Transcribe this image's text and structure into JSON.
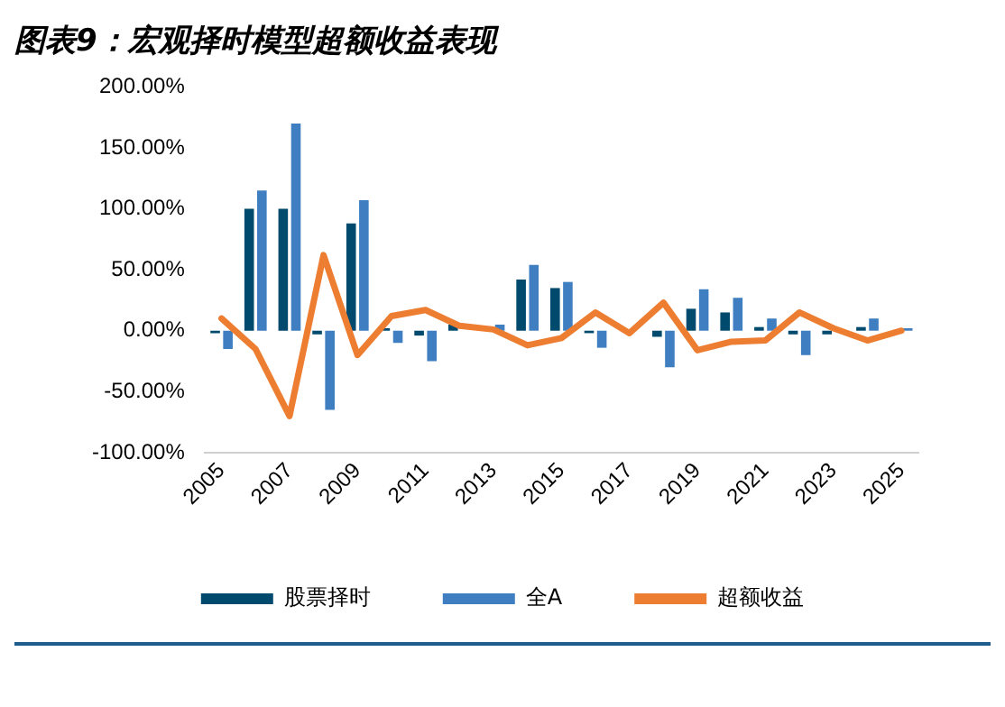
{
  "chart_data": {
    "type": "bar",
    "title": "图表9：宏观择时模型超额收益表现",
    "categories": [
      "2005",
      null,
      "2007",
      null,
      "2009",
      null,
      "2011",
      null,
      "2013",
      null,
      "2015",
      null,
      "2017",
      null,
      "2019",
      null,
      "2021",
      null,
      "2023",
      null,
      "2025"
    ],
    "series": [
      {
        "name": "股票择时",
        "color": "#004a6e",
        "values": [
          -2,
          100,
          100,
          -3,
          88,
          2,
          -4,
          5,
          null,
          42,
          35,
          -2,
          null,
          -5,
          18,
          15,
          3,
          -3,
          -3,
          3,
          null
        ]
      },
      {
        "name": "全A",
        "color": "#3f7fc1",
        "values": [
          -15,
          115,
          170,
          -65,
          107,
          -10,
          -25,
          null,
          5,
          54,
          40,
          -14,
          null,
          -30,
          34,
          27,
          10,
          -20,
          null,
          10,
          2
        ]
      },
      {
        "name": "超额收益",
        "type": "line",
        "color": "#ed7d31",
        "values": [
          10,
          -15,
          -70,
          62,
          -20,
          12,
          17,
          4,
          1,
          -12,
          -6,
          15,
          -2,
          23,
          -16,
          -9,
          -8,
          15,
          2,
          -8,
          0
        ]
      }
    ],
    "ylim": [
      -100,
      200
    ],
    "yticks": [
      {
        "value": -100,
        "label": "-100.00%"
      },
      {
        "value": -50,
        "label": "-50.00%"
      },
      {
        "value": 0,
        "label": "0.00%"
      },
      {
        "value": 50,
        "label": "50.00%"
      },
      {
        "value": 100,
        "label": "100.00%"
      },
      {
        "value": 150,
        "label": "150.00%"
      },
      {
        "value": 200,
        "label": "200.00%"
      }
    ],
    "grid": false,
    "legend": "bottom",
    "marker": "none",
    "line_style": "solid"
  }
}
